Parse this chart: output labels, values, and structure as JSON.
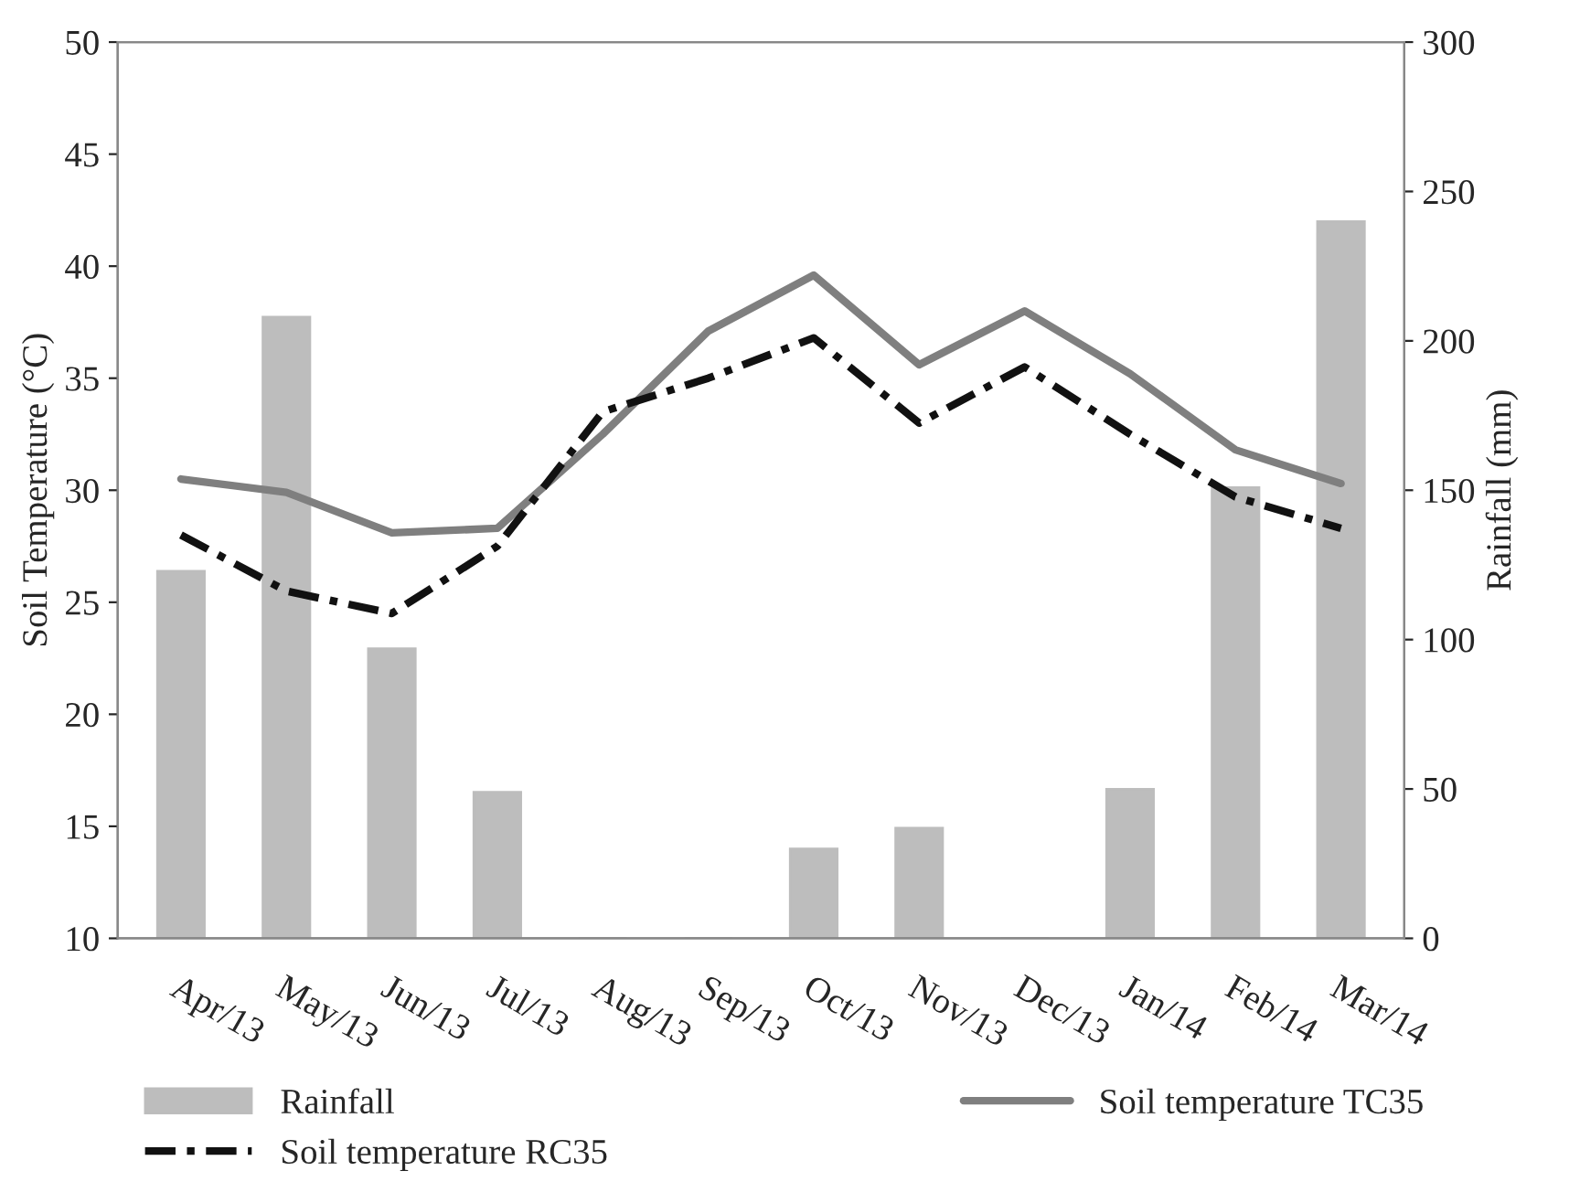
{
  "chart_data": {
    "type": "line",
    "ylabel": "Soil Temperature (°C)",
    "y2label": "Rainfall (mm)",
    "categories": [
      "Apr/13",
      "May/13",
      "Jun/13",
      "Jul/13",
      "Aug/13",
      "Sep/13",
      "Oct/13",
      "Nov/13",
      "Dec/13",
      "Jan/14",
      "Feb/14",
      "Mar/14"
    ],
    "series": [
      {
        "name": "Rainfall",
        "type": "bar",
        "axis": "y2",
        "color": "#bdbdbd",
        "values": [
          123,
          208,
          97,
          49,
          0,
          0,
          30,
          37,
          0,
          50,
          151,
          240
        ]
      },
      {
        "name": "Soil temperature TC35",
        "color": "#7f7f7f",
        "line_style": "solid",
        "values": [
          30.5,
          29.9,
          28.1,
          28.3,
          32.5,
          37.1,
          39.6,
          35.6,
          38.0,
          35.2,
          31.8,
          30.3
        ]
      },
      {
        "name": "Soil temperature RC35",
        "color": "#111111",
        "line_style": "dashdot",
        "values": [
          28.0,
          25.5,
          24.5,
          27.5,
          33.5,
          35.0,
          36.8,
          33.0,
          35.5,
          32.5,
          29.7,
          28.3
        ]
      }
    ],
    "ylim": [
      10,
      50
    ],
    "yticks": [
      10,
      15,
      20,
      25,
      30,
      35,
      40,
      45,
      50
    ],
    "y2lim": [
      0,
      300
    ],
    "y2ticks": [
      0,
      50,
      100,
      150,
      200,
      250,
      300
    ],
    "grid": false,
    "legend": "bottom"
  }
}
